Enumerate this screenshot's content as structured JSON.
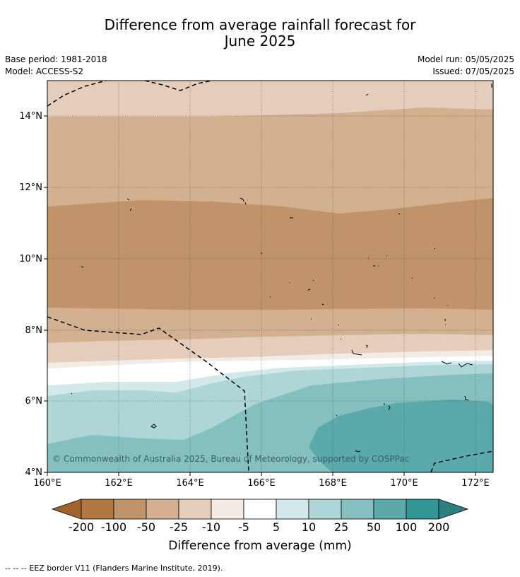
{
  "header": {
    "title_line1": "Difference from average rainfall forecast for",
    "title_line2": "June 2025",
    "base_period": "Base period: 1981-2018",
    "model": "Model: ACCESS-S2",
    "model_run": "Model run: 05/05/2025",
    "issued": "Issued: 07/05/2025"
  },
  "map": {
    "lon_labels": [
      "160°E",
      "162°E",
      "164°E",
      "166°E",
      "168°E",
      "170°E",
      "172°E"
    ],
    "lat_labels": [
      "14°N",
      "12°N",
      "10°N",
      "8°N",
      "6°N",
      "4°N"
    ],
    "copyright": "© Commonwealth of Australia 2025, Bureau of Meteorology, supported by COSPPac"
  },
  "colorbar": {
    "labels": [
      "-200",
      "-100",
      "-50",
      "-25",
      "-10",
      "-5",
      "5",
      "10",
      "25",
      "50",
      "100",
      "200"
    ],
    "colors": [
      "#a2632c",
      "#b07740",
      "#c0936a",
      "#d2b090",
      "#e4cdba",
      "#f2ebe6",
      "#ffffff",
      "#d3e9e9",
      "#aed6d6",
      "#84c0c0",
      "#5aa9ab",
      "#349596",
      "#2e8080"
    ],
    "title": "Difference from average (mm)"
  },
  "footnote": "--  --  -- EEZ border V11 (Flanders Marine Institute, 2019)."
}
